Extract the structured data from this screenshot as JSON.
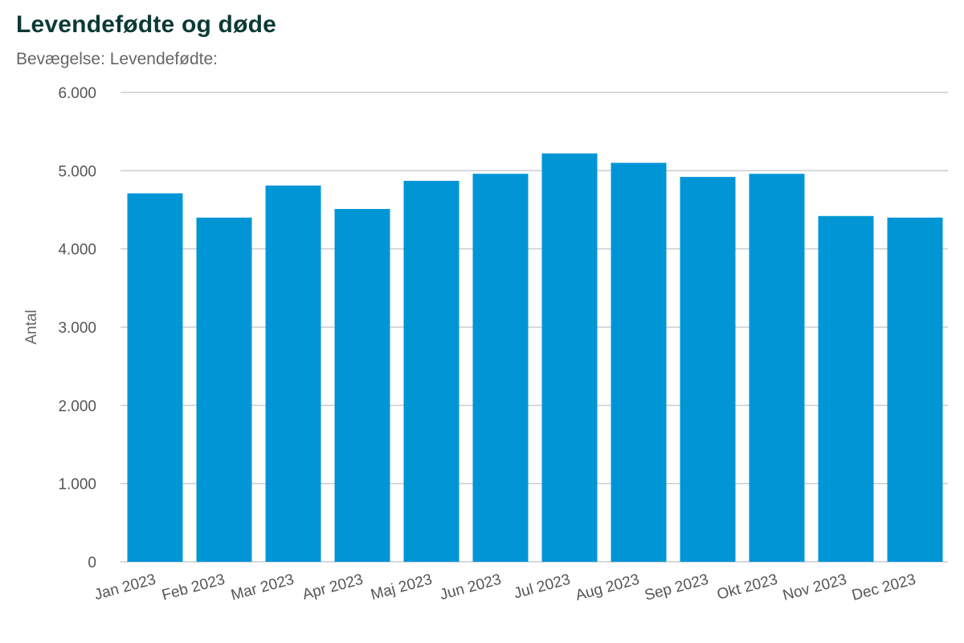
{
  "chart_data": {
    "type": "bar",
    "title": "Levendefødte og døde",
    "subtitle": "Bevægelse: Levendefødte:",
    "xlabel": "",
    "ylabel": "Antal",
    "ylim": [
      0,
      6000
    ],
    "yticks": [
      0,
      1000,
      2000,
      3000,
      4000,
      5000,
      6000
    ],
    "ytick_labels": [
      "0",
      "1.000",
      "2.000",
      "3.000",
      "4.000",
      "5.000",
      "6.000"
    ],
    "grid": true,
    "legend": "none",
    "bar_color": "#0096d6",
    "categories": [
      "Jan 2023",
      "Feb 2023",
      "Mar 2023",
      "Apr 2023",
      "Maj 2023",
      "Jun 2023",
      "Jul 2023",
      "Aug 2023",
      "Sep 2023",
      "Okt 2023",
      "Nov 2023",
      "Dec 2023"
    ],
    "values": [
      4710,
      4400,
      4810,
      4510,
      4870,
      4960,
      5220,
      5100,
      4920,
      4960,
      4420,
      4400
    ]
  }
}
